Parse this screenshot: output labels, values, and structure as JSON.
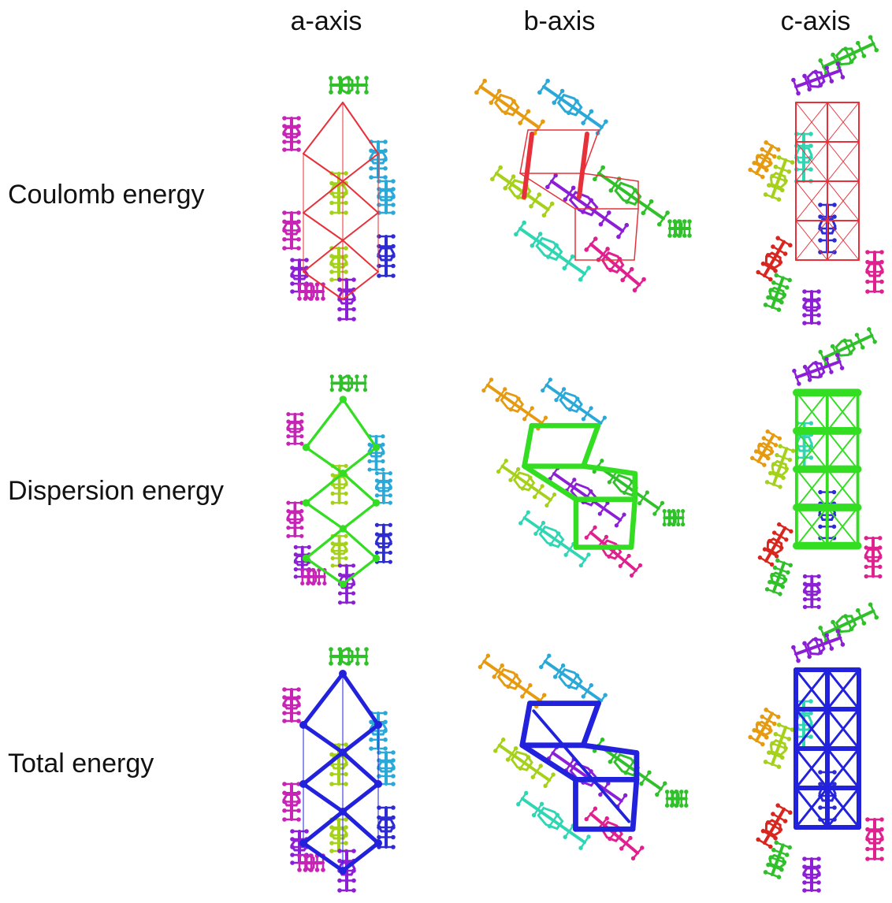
{
  "columns": [
    "a-axis",
    "b-axis",
    "c-axis"
  ],
  "rows": [
    "Coulomb energy",
    "Dispersion energy",
    "Total energy"
  ],
  "colors": {
    "coulomb": "#e8303a",
    "dispersion": "#33dd22",
    "total": "#2222dd",
    "molecules": [
      "#2fc02a",
      "#c724b6",
      "#8c1fd6",
      "#2aa8d8",
      "#a5d11a",
      "#2c2cd2",
      "#e69a10",
      "#2fd6b4",
      "#e0208f",
      "#d8261f"
    ]
  }
}
